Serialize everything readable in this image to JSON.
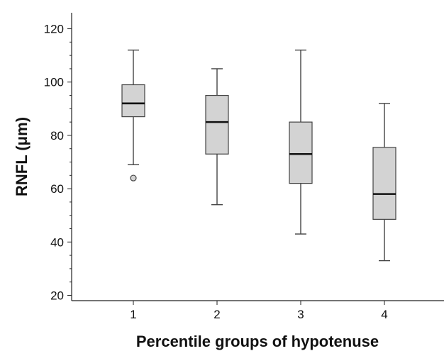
{
  "chart_data": {
    "type": "boxplot",
    "title": "",
    "xlabel": "Percentile groups of hypotenuse",
    "ylabel": "RNFL (μm)",
    "ylim": [
      18,
      126
    ],
    "yticks": [
      20,
      40,
      60,
      80,
      100,
      120
    ],
    "categories": [
      "1",
      "2",
      "3",
      "4"
    ],
    "grid": false,
    "box_color": "#d3d3d3",
    "box_edge_color": "#444444",
    "median_color": "#111111",
    "boxes": [
      {
        "category": "1",
        "whisker_low": 69,
        "q1": 87,
        "median": 92,
        "q3": 99,
        "whisker_high": 112,
        "outliers": [
          64
        ]
      },
      {
        "category": "2",
        "whisker_low": 54,
        "q1": 73,
        "median": 85,
        "q3": 95,
        "whisker_high": 105,
        "outliers": []
      },
      {
        "category": "3",
        "whisker_low": 43,
        "q1": 62,
        "median": 73,
        "q3": 85,
        "whisker_high": 112,
        "outliers": []
      },
      {
        "category": "4",
        "whisker_low": 33,
        "q1": 48.5,
        "median": 58,
        "q3": 75.5,
        "whisker_high": 92,
        "outliers": []
      }
    ]
  }
}
